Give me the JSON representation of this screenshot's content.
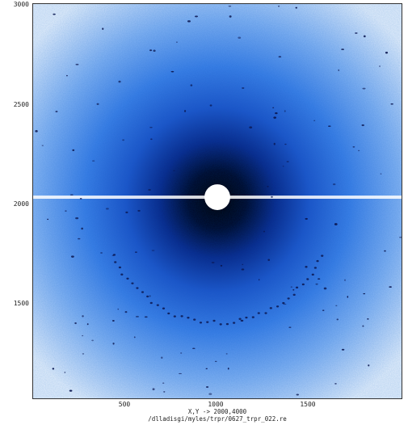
{
  "image": {
    "description_colors": {
      "background": "#3b7fe6",
      "light_edge": "#dce9fb",
      "dark_center": "#000c33",
      "beamstop": "#ffffff",
      "streak": "#ffffff",
      "spot": "#0a1650"
    }
  },
  "axes": {
    "y_ticks": [
      "3000",
      "2500",
      "2000",
      "1500"
    ],
    "x_ticks": [
      "500",
      "1000",
      "1500"
    ]
  },
  "status": {
    "coords": "X,Y -> 2000,4000",
    "path": "/dlladisgi/myles/trpr/0627_trpr_022.re"
  }
}
